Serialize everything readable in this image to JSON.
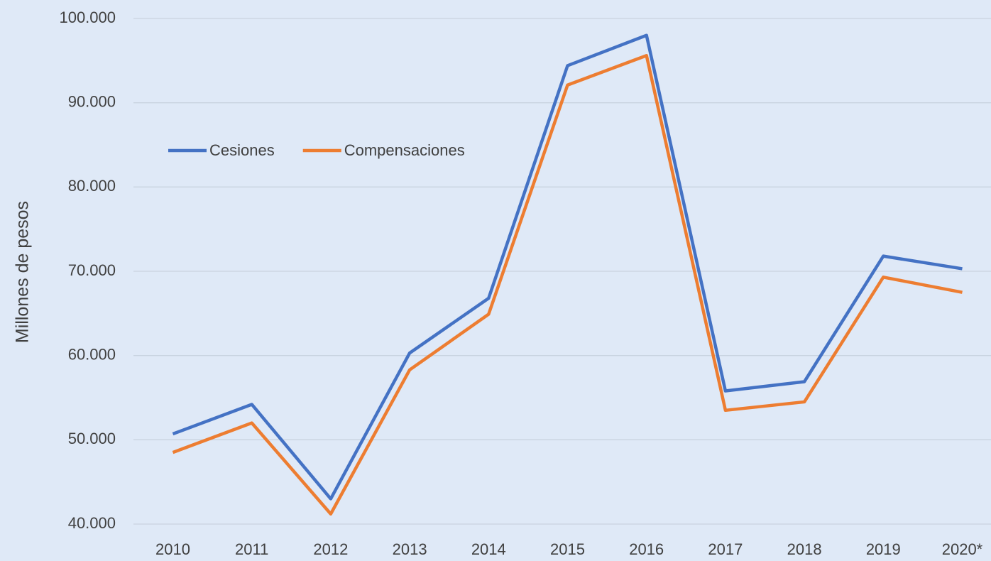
{
  "chart_data": {
    "type": "line",
    "y_label": "Millones de pesos",
    "categories": [
      "2010",
      "2011",
      "2012",
      "2013",
      "2014",
      "2015",
      "2016",
      "2017",
      "2018",
      "2019",
      "2020*"
    ],
    "series": [
      {
        "name": "Cesiones",
        "color": "#4472c4",
        "values": [
          50700,
          54200,
          43000,
          60300,
          66800,
          94400,
          98000,
          55800,
          56900,
          71800,
          70300
        ]
      },
      {
        "name": "Compensaciones",
        "color": "#ed7d31",
        "values": [
          48500,
          52000,
          41200,
          58300,
          64900,
          92100,
          95600,
          53500,
          54500,
          69300,
          67500
        ]
      }
    ],
    "ylim": [
      40000,
      100000
    ],
    "yticks": [
      {
        "value": 40000,
        "label": "40.000"
      },
      {
        "value": 50000,
        "label": "50.000"
      },
      {
        "value": 60000,
        "label": "60.000"
      },
      {
        "value": 70000,
        "label": "70.000"
      },
      {
        "value": 80000,
        "label": "80.000"
      },
      {
        "value": 90000,
        "label": "90.000"
      },
      {
        "value": 100000,
        "label": "100.000"
      }
    ],
    "grid": true,
    "legend": "top-left"
  }
}
